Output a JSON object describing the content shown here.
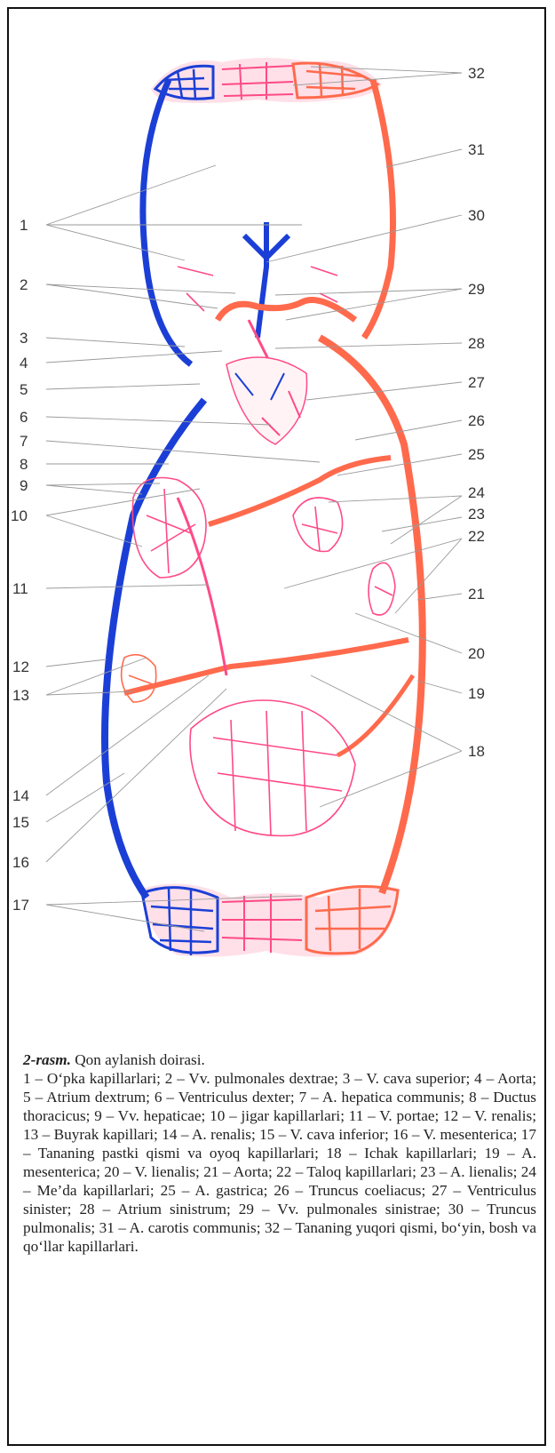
{
  "figure": {
    "labels_left": [
      "1",
      "2",
      "3",
      "4",
      "5",
      "6",
      "7",
      "8",
      "9",
      "10",
      "11",
      "12",
      "13",
      "14",
      "15",
      "16",
      "17"
    ],
    "labels_right": [
      "32",
      "31",
      "30",
      "29",
      "28",
      "27",
      "26",
      "25",
      "24",
      "23",
      "22",
      "21",
      "20",
      "19",
      "18"
    ],
    "colors": {
      "vein": "#1b3fd6",
      "artery": "#ff6a4d",
      "capillary": "#ff4a88",
      "frame": "#111111"
    }
  },
  "caption": {
    "title": "2-rasm.",
    "title_rest": " Qon aylanish doirasi.",
    "body": "1 – O‘pka kapillarlari; 2 – Vv. pulmonales dextrae; 3 – V. cava superior; 4 – Aorta; 5 – Atrium dextrum; 6 – Ventriculus dexter; 7 – A. hepatica communis; 8 – Ductus thoracicus; 9 – Vv. hepaticae; 10 – jigar kapillarlari; 11 – V. portae; 12 – V. renalis; 13 – Buyrak kapillari; 14 – A. renalis; 15 – V. cava inferior; 16 – V. mesenterica; 17 – Tananing pastki qismi va oyoq kapillarlari; 18 – Ichak kapillarlari; 19 – A. mesenterica; 20 – V. lienalis; 21 – Aorta; 22 – Taloq kapillarlari; 23 – A. lienalis; 24 – Me’da kapillarlari; 25 – A. gastrica; 26 – Truncus coeliacus; 27 – Ventriculus sinister; 28 – Atrium sinistrum; 29 – Vv. pulmonales sinistrae; 30 – Truncus pulmonalis; 31 – A. carotis communis; 32 – Tananing yuqori qismi, bo‘yin, bosh va qo‘llar kapillarlari."
  }
}
